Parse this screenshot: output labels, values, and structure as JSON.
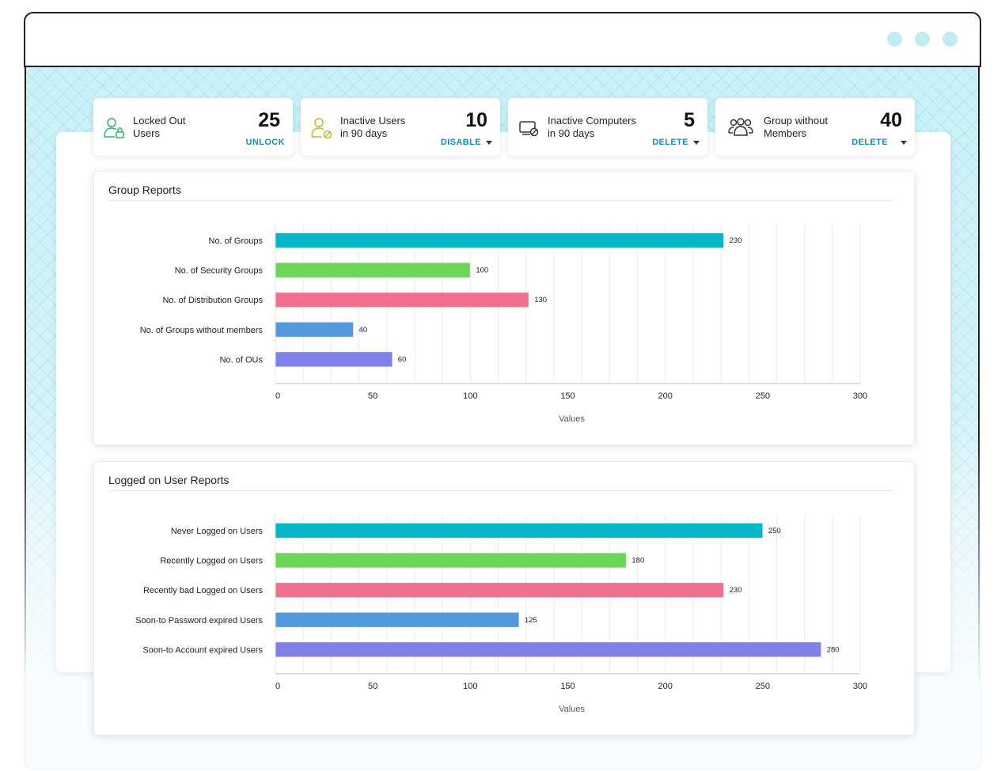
{
  "window": {
    "controls": [
      "dot",
      "dot",
      "dot"
    ]
  },
  "stats": [
    {
      "label_line1": "Locked Out",
      "label_line2": "Users",
      "count": "25",
      "action": "UNLOCK",
      "has_dropdown": false,
      "icon": "user-lock-icon",
      "icon_color": "#2fb36a"
    },
    {
      "label_line1": "Inactive Users",
      "label_line2": "in 90 days",
      "count": "10",
      "action": "DISABLE",
      "has_dropdown": true,
      "icon": "user-disabled-icon",
      "icon_color": "#c5b52a"
    },
    {
      "label_line1": "Inactive Computers",
      "label_line2": "in 90 days",
      "count": "5",
      "action": "DELETE",
      "has_dropdown": true,
      "icon": "computer-disabled-icon",
      "icon_color": "#333333"
    },
    {
      "label_line1": "Group without",
      "label_line2": "Members",
      "count": "40",
      "action": "DELETE",
      "has_dropdown": true,
      "icon": "group-icon",
      "icon_color": "#333333"
    }
  ],
  "chart_data": [
    {
      "type": "bar",
      "orientation": "horizontal",
      "title": "Group Reports",
      "categories": [
        "No. of Groups",
        "No. of Security Groups",
        "No. of Distribution Groups",
        "No. of Groups without members",
        "No. of OUs"
      ],
      "values": [
        230,
        100,
        130,
        40,
        60
      ],
      "colors": [
        "#06b6c6",
        "#6cd65a",
        "#f0718e",
        "#5499dd",
        "#7f80e8"
      ],
      "xlabel": "Values",
      "ylabel": "",
      "xlim": [
        0,
        300
      ],
      "xticks": [
        0,
        50,
        100,
        150,
        200,
        250,
        300
      ],
      "grid": true,
      "data_labels": true
    },
    {
      "type": "bar",
      "orientation": "horizontal",
      "title": "Logged on User Reports",
      "categories": [
        "Never Logged on Users",
        "Recently Logged on Users",
        "Recently bad Logged on Users",
        "Soon-to Password expired Users",
        "Soon-to Account expired Users"
      ],
      "values": [
        250,
        180,
        230,
        125,
        280
      ],
      "colors": [
        "#06b6c6",
        "#6cd65a",
        "#f0718e",
        "#5499dd",
        "#7f80e8"
      ],
      "xlabel": "Values",
      "ylabel": "",
      "xlim": [
        0,
        300
      ],
      "xticks": [
        0,
        50,
        100,
        150,
        200,
        250,
        300
      ],
      "grid": true,
      "data_labels": true
    }
  ]
}
